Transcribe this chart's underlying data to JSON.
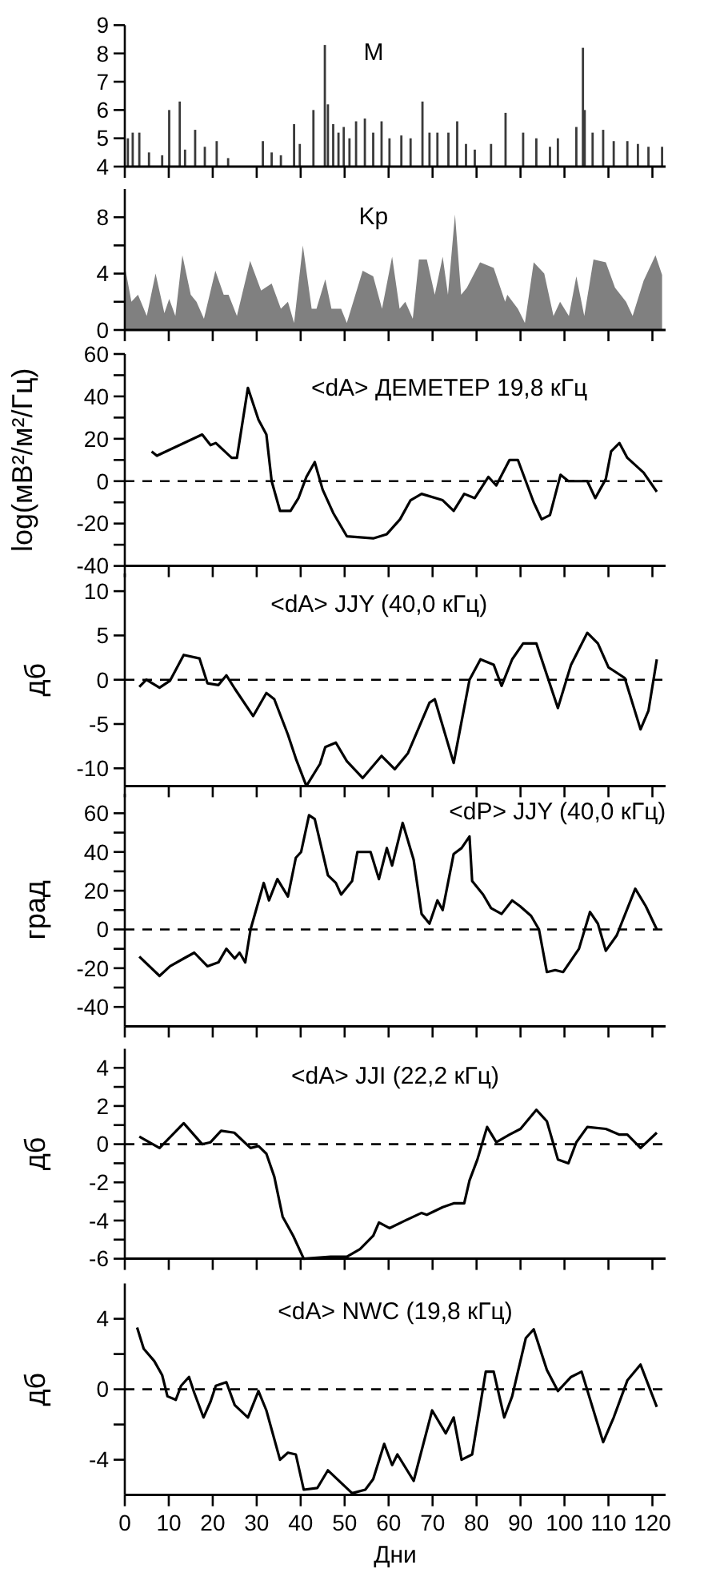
{
  "chart_data": [
    {
      "type": "bar",
      "title": "M",
      "color": "#3a3a3a",
      "xlim": [
        0,
        123
      ],
      "xticks": [
        0,
        10,
        20,
        30,
        40,
        50,
        60,
        70,
        80,
        90,
        100,
        110,
        120
      ],
      "ylim": [
        4,
        9
      ],
      "yticks": [
        4,
        5,
        6,
        7,
        8,
        9
      ],
      "tick_labels": "y",
      "x": [
        0.7,
        1.8,
        3.3,
        5.5,
        8.5,
        10.1,
        12.5,
        13.7,
        16.0,
        18.2,
        20.9,
        23.5,
        31.4,
        33.4,
        35.5,
        38.5,
        39.8,
        42.9,
        45.5,
        46.2,
        47.4,
        48.6,
        49.8,
        51.1,
        52.6,
        54.6,
        56.5,
        58.4,
        60.2,
        62.9,
        65.0,
        67.7,
        69.3,
        71.1,
        73.6,
        75.6,
        77.6,
        79.6,
        83.3,
        86.6,
        90.6,
        93.6,
        96.7,
        98.5,
        102.7,
        104.2,
        104.6,
        106.4,
        108.8,
        111.2,
        114.3,
        116.7,
        119.1,
        122.2
      ],
      "values": [
        5.0,
        5.2,
        5.2,
        4.5,
        4.4,
        6.0,
        6.3,
        4.6,
        5.3,
        4.7,
        4.9,
        4.3,
        4.9,
        4.5,
        4.4,
        5.5,
        4.8,
        6.0,
        8.3,
        6.2,
        5.5,
        5.2,
        5.4,
        5.0,
        5.6,
        5.7,
        5.2,
        5.6,
        5.0,
        5.1,
        5.0,
        6.3,
        5.2,
        5.2,
        5.2,
        5.6,
        4.8,
        4.6,
        4.8,
        5.9,
        5.2,
        5.0,
        4.7,
        5.0,
        5.4,
        8.2,
        6.0,
        5.2,
        5.3,
        4.9,
        4.9,
        4.8,
        4.7,
        4.7
      ]
    },
    {
      "type": "area",
      "title": "Kp",
      "color": "#808080",
      "xlim": [
        0,
        123
      ],
      "xticks": [
        0,
        10,
        20,
        30,
        40,
        50,
        60,
        70,
        80,
        90,
        100,
        110,
        120
      ],
      "ylim": [
        0,
        10
      ],
      "yticks": [
        0,
        {
          "value": 2,
          "label": null
        },
        4,
        {
          "value": 6,
          "label": null
        },
        8
      ],
      "tick_labels": "y",
      "x": [
        0.2,
        1.5,
        3.0,
        5.0,
        7.0,
        9.0,
        10.1,
        11.5,
        13.1,
        15.0,
        16.3,
        18.0,
        20.6,
        22.5,
        23.6,
        25.5,
        28.5,
        31,
        33.4,
        35.5,
        37.1,
        38.5,
        40.5,
        42.5,
        43.6,
        45.6,
        47.0,
        49.2,
        50.5,
        54.1,
        56.5,
        58.5,
        60.8,
        62.5,
        63.8,
        65.5,
        66.9,
        68.7,
        70.5,
        72.3,
        73.5,
        75.1,
        76.5,
        77.8,
        80.8,
        83.9,
        86.5,
        87.0,
        89.4,
        91.0,
        93.0,
        95.4,
        97.5,
        99.0,
        101.0,
        102.7,
        104.5,
        106.6,
        109.4,
        111.5,
        114.0,
        115.5,
        118.0,
        120.7,
        122.2
      ],
      "values": [
        4.2,
        2.0,
        2.5,
        1.0,
        4.0,
        1.2,
        2.2,
        1.0,
        5.3,
        2.5,
        2.0,
        0.8,
        4.2,
        2.5,
        2.5,
        1.0,
        4.9,
        2.8,
        3.3,
        1.5,
        2.0,
        0.5,
        6.0,
        1.5,
        1.5,
        3.6,
        1.5,
        1.5,
        0.5,
        4.2,
        3.8,
        1.5,
        5.2,
        1.5,
        2.0,
        0.8,
        5.0,
        5.0,
        2.5,
        5.2,
        2.5,
        8.2,
        2.5,
        3.0,
        4.8,
        4.4,
        2.0,
        2.5,
        1.5,
        0.5,
        4.8,
        4.0,
        1.0,
        2.0,
        1.0,
        3.8,
        1.0,
        5.0,
        4.8,
        3.0,
        2.0,
        1.0,
        3.5,
        5.3,
        3.9
      ]
    },
    {
      "type": "line",
      "title": "<dA> ДЕМЕТЕР 19,8 кГц",
      "ylabel": "log(мВ²/м²/Гц)",
      "color": "#000000",
      "xlim": [
        0,
        123
      ],
      "xticks": [
        0,
        10,
        20,
        30,
        40,
        50,
        60,
        70,
        80,
        90,
        100,
        110,
        120
      ],
      "ylim": [
        -40,
        60
      ],
      "yticks": [
        -40,
        {
          "value": -30,
          "label": null
        },
        -20,
        {
          "value": -10,
          "label": null
        },
        0,
        {
          "value": 10,
          "label": null
        },
        20,
        {
          "value": 30,
          "label": null
        },
        40,
        {
          "value": 50,
          "label": null
        },
        60
      ],
      "tick_labels": "y",
      "ref_lines": [
        {
          "axis": "y",
          "value": 0,
          "line_style": "dashed"
        }
      ],
      "x": [
        6.1,
        7.3,
        17.6,
        19.5,
        20.7,
        24.3,
        25.5,
        28,
        30.4,
        32.2,
        33.4,
        35.3,
        37.7,
        39.5,
        41.3,
        43.2,
        45,
        47.4,
        50.5,
        56.5,
        59.6,
        62.6,
        65.0,
        67.5,
        72.3,
        74.8,
        77.2,
        79.6,
        82.7,
        84.5,
        87.5,
        89.4,
        93,
        94.8,
        96.7,
        99.1,
        100.9,
        105.2,
        107,
        109.4,
        110.6,
        112.5,
        114.3,
        118,
        121
      ],
      "values": [
        14,
        12,
        22,
        17,
        18,
        11,
        11,
        44,
        29,
        22,
        0,
        -14,
        -14,
        -8,
        2,
        9,
        -4,
        -15,
        -26,
        -27,
        -25,
        -18,
        -9,
        -6,
        -9,
        -14,
        -6,
        -8,
        2,
        -2,
        10,
        10,
        -10,
        -18,
        -16,
        3,
        0,
        0,
        -8,
        1,
        14,
        18,
        11,
        4,
        -5
      ]
    },
    {
      "type": "line",
      "title": "<dA> JJY (40,0 кГц)",
      "ylabel": "дб",
      "color": "#000000",
      "xlim": [
        0,
        123
      ],
      "xticks": [
        0,
        10,
        20,
        30,
        40,
        50,
        60,
        70,
        80,
        90,
        100,
        110,
        120
      ],
      "ylim": [
        -12,
        12
      ],
      "yticks": [
        -10,
        -5,
        0,
        5,
        10
      ],
      "tick_labels": "y",
      "ref_lines": [
        {
          "axis": "y",
          "value": 0,
          "line_style": "dashed"
        }
      ],
      "x": [
        3.3,
        4.9,
        7.9,
        10.3,
        13.4,
        17,
        18.8,
        21.3,
        23.1,
        25,
        29.2,
        32.2,
        34,
        37.1,
        38.9,
        41.3,
        44.4,
        45.6,
        48,
        50.5,
        54.1,
        58.4,
        61.4,
        64.4,
        69.3,
        70.5,
        74.8,
        78.4,
        80.9,
        83.9,
        85.7,
        88.1,
        90.6,
        93.6,
        98.5,
        101.5,
        105.2,
        107.6,
        110,
        113.7,
        117.3,
        119.1,
        121
      ],
      "values": [
        -0.8,
        0,
        -0.9,
        -0.1,
        2.8,
        2.4,
        -0.4,
        -0.6,
        0.5,
        -1.0,
        -4.1,
        -1.5,
        -2.2,
        -6.2,
        -8.9,
        -12,
        -9.5,
        -7.6,
        -7.1,
        -9.2,
        -11.1,
        -8.6,
        -10.1,
        -8.3,
        -2.6,
        -2.2,
        -9.4,
        0,
        2.3,
        1.7,
        -0.7,
        2.3,
        4.1,
        4.1,
        -3.2,
        1.7,
        5.3,
        4.1,
        1.4,
        0.2,
        -5.6,
        -3.5,
        2.3
      ]
    },
    {
      "type": "line",
      "title": "<dP> JJY (40,0  кГц)",
      "ylabel": "град",
      "color": "#000000",
      "xlim": [
        0,
        123
      ],
      "xticks": [
        0,
        10,
        20,
        30,
        40,
        50,
        60,
        70,
        80,
        90,
        100,
        110,
        120
      ],
      "ylim": [
        -50,
        70
      ],
      "yticks": [
        -40,
        {
          "value": -30,
          "label": null
        },
        -20,
        {
          "value": -10,
          "label": null
        },
        0,
        {
          "value": 10,
          "label": null
        },
        20,
        {
          "value": 30,
          "label": null
        },
        40,
        {
          "value": 50,
          "label": null
        },
        60
      ],
      "tick_labels": "y",
      "ref_lines": [
        {
          "axis": "y",
          "value": 0,
          "line_style": "dashed"
        }
      ],
      "x": [
        3.3,
        7.9,
        10.3,
        13.4,
        15.8,
        18.8,
        21.3,
        23.1,
        25,
        26.1,
        27.4,
        28.6,
        31.6,
        32.8,
        34.7,
        37.1,
        38.9,
        40.1,
        41.9,
        43.2,
        46.2,
        48,
        49.2,
        51.7,
        52.9,
        55.9,
        57.8,
        59.6,
        60.8,
        63.2,
        65.7,
        67.5,
        69.3,
        71.1,
        72.3,
        74.8,
        76.6,
        78.4,
        79,
        81.5,
        83.3,
        85.7,
        88.1,
        89.9,
        92.4,
        94.2,
        96,
        97.9,
        99.7,
        103.3,
        105.8,
        107.6,
        109.4,
        111.9,
        116.1,
        118.5,
        121
      ],
      "values": [
        -14,
        -24,
        -19,
        -15,
        -12,
        -19,
        -17,
        -10,
        -15,
        -12,
        -17,
        0,
        24,
        15,
        26,
        17,
        37,
        40,
        59,
        57,
        28,
        24,
        18,
        25,
        40,
        40,
        26,
        42,
        33,
        55,
        36,
        8,
        3,
        15,
        10,
        39,
        42,
        48,
        25,
        18,
        11,
        8,
        15,
        12,
        7,
        0,
        -22,
        -21,
        -22,
        -10,
        9,
        3,
        -11,
        -3,
        21,
        12,
        0
      ]
    },
    {
      "type": "line",
      "title": "<dA> JJI (22,2 кГц)",
      "ylabel": "дб",
      "color": "#000000",
      "xlim": [
        0,
        123
      ],
      "xticks": [
        0,
        10,
        20,
        30,
        40,
        50,
        60,
        70,
        80,
        90,
        100,
        110,
        120
      ],
      "ylim": [
        -6,
        5
      ],
      "yticks": [
        -6,
        {
          "value": -5,
          "label": null
        },
        -4,
        {
          "value": -3,
          "label": null
        },
        -2,
        {
          "value": -1,
          "label": null
        },
        0,
        {
          "value": 1,
          "label": null
        },
        2,
        {
          "value": 3,
          "label": null
        },
        4
      ],
      "tick_labels": "y",
      "ref_lines": [
        {
          "axis": "y",
          "value": 0,
          "line_style": "dashed"
        }
      ],
      "x": [
        3.3,
        7.9,
        13.4,
        17.6,
        19.5,
        21.9,
        24.9,
        28.6,
        30.4,
        32.2,
        34,
        35.9,
        38.3,
        40.7,
        46.8,
        50.5,
        53.5,
        56.5,
        57.8,
        60.2,
        63.8,
        67.5,
        68.7,
        72.3,
        74.8,
        77.2,
        78.4,
        80.2,
        82.4,
        84.5,
        87.5,
        90,
        93.6,
        96,
        98.5,
        100.9,
        102.7,
        105.2,
        109.4,
        112.5,
        114.3,
        117.3,
        121
      ],
      "values": [
        0.4,
        -0.2,
        1.1,
        0,
        0.1,
        0.7,
        0.6,
        -0.2,
        -0.1,
        -0.5,
        -1.7,
        -3.8,
        -4.8,
        -6,
        -5.9,
        -5.9,
        -5.5,
        -4.8,
        -4.1,
        -4.4,
        -4.0,
        -3.6,
        -3.7,
        -3.3,
        -3.1,
        -3.1,
        -1.9,
        -0.8,
        0.9,
        0.1,
        0.5,
        0.8,
        1.8,
        1.2,
        -0.8,
        -1.0,
        0.1,
        0.9,
        0.8,
        0.5,
        0.5,
        -0.2,
        0.6
      ]
    },
    {
      "type": "line",
      "title": "<dA> NWC (19,8 кГц)",
      "ylabel": "дб",
      "xlabel": "Дни",
      "color": "#000000",
      "xlim": [
        0,
        123
      ],
      "xticks": [
        0,
        10,
        20,
        30,
        40,
        50,
        60,
        70,
        80,
        90,
        100,
        110,
        120
      ],
      "ylim": [
        -6,
        6
      ],
      "yticks": [
        -4,
        {
          "value": -2,
          "label": null
        },
        0,
        {
          "value": 2,
          "label": null
        },
        4
      ],
      "ref_lines": [
        {
          "axis": "y",
          "value": 0,
          "line_style": "dashed"
        }
      ],
      "x": [
        2.8,
        4.3,
        6.7,
        8.5,
        9.7,
        11.6,
        12.8,
        14.6,
        15.8,
        17.9,
        19.5,
        20.7,
        23.1,
        25,
        28,
        30.4,
        32.2,
        35.3,
        37.1,
        38.9,
        40.7,
        43.8,
        46.2,
        51.7,
        54.7,
        56.5,
        59,
        60.8,
        62,
        65.7,
        69.9,
        73,
        74.8,
        76.6,
        79,
        82.1,
        83.9,
        86.3,
        88.1,
        91.2,
        93,
        96,
        98.5,
        101.5,
        103.9,
        108.8,
        111.2,
        114.3,
        117.3,
        121
      ],
      "values": [
        3.5,
        2.3,
        1.6,
        0.8,
        -0.4,
        -0.6,
        0.2,
        0.7,
        -0.2,
        -1.6,
        -0.7,
        0.2,
        0.4,
        -0.9,
        -1.6,
        -0.1,
        -1.2,
        -4.0,
        -3.6,
        -3.7,
        -5.7,
        -5.6,
        -4.6,
        -5.9,
        -5.7,
        -5.1,
        -3.1,
        -4.3,
        -3.7,
        -5.2,
        -1.2,
        -2.5,
        -1.6,
        -4.0,
        -3.7,
        1.0,
        1.0,
        -1.6,
        -0.4,
        2.9,
        3.4,
        1.1,
        -0.1,
        0.7,
        1.0,
        -3.0,
        -1.6,
        0.5,
        1.4,
        -1.0
      ]
    }
  ]
}
